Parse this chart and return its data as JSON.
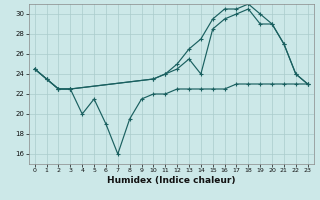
{
  "xlabel": "Humidex (Indice chaleur)",
  "bg_color": "#cce8e8",
  "grid_color": "#aacccc",
  "line_color": "#1a6060",
  "xlim": [
    -0.5,
    23.5
  ],
  "ylim": [
    15.0,
    31.0
  ],
  "yticks": [
    16,
    18,
    20,
    22,
    24,
    26,
    28,
    30
  ],
  "xticks": [
    0,
    1,
    2,
    3,
    4,
    5,
    6,
    7,
    8,
    9,
    10,
    11,
    12,
    13,
    14,
    15,
    16,
    17,
    18,
    19,
    20,
    21,
    22,
    23
  ],
  "line1_x": [
    0,
    1,
    2,
    3,
    4,
    5,
    6,
    7,
    8,
    9,
    10,
    11,
    12,
    13,
    14,
    15,
    16,
    17,
    18,
    19,
    20,
    21,
    22,
    23
  ],
  "line1_y": [
    24.5,
    23.5,
    22.5,
    22.5,
    20.0,
    21.5,
    19.0,
    16.0,
    19.5,
    21.5,
    22.0,
    22.0,
    22.5,
    22.5,
    22.5,
    22.5,
    22.5,
    23.0,
    23.0,
    23.0,
    23.0,
    23.0,
    23.0,
    23.0
  ],
  "line2_x": [
    0,
    1,
    2,
    3,
    10,
    11,
    12,
    13,
    14,
    15,
    16,
    17,
    18,
    19,
    20,
    21,
    22,
    23
  ],
  "line2_y": [
    24.5,
    23.5,
    22.5,
    22.5,
    23.5,
    24.0,
    25.0,
    26.5,
    27.5,
    29.5,
    30.5,
    30.5,
    31.0,
    30.0,
    29.0,
    27.0,
    24.0,
    23.0
  ],
  "line3_x": [
    0,
    1,
    2,
    3,
    10,
    11,
    12,
    13,
    14,
    15,
    16,
    17,
    18,
    19,
    20,
    21,
    22,
    23
  ],
  "line3_y": [
    24.5,
    23.5,
    22.5,
    22.5,
    23.5,
    24.0,
    24.5,
    25.5,
    24.0,
    28.5,
    29.5,
    30.0,
    30.5,
    29.0,
    29.0,
    27.0,
    24.0,
    23.0
  ]
}
